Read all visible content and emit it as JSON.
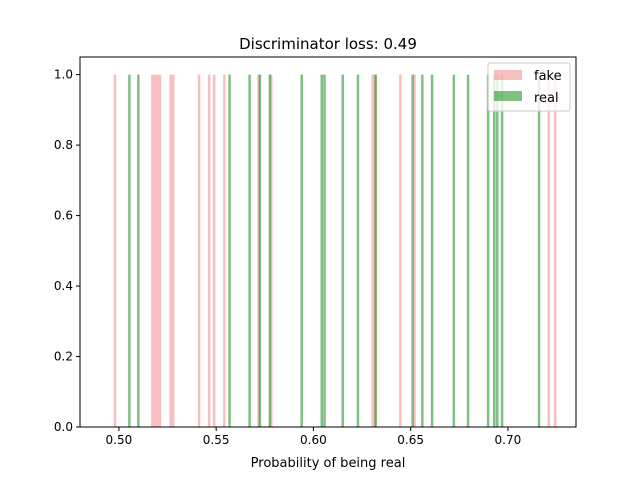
{
  "chart_data": {
    "type": "bar",
    "title": "Discriminator loss: 0.49",
    "xlabel": "Probability of being real",
    "ylabel": "",
    "xlim": [
      0.48,
      0.735
    ],
    "ylim": [
      0,
      1.05
    ],
    "xticks": [
      0.5,
      0.55,
      0.6,
      0.65,
      0.7
    ],
    "xtick_labels": [
      "0.50",
      "0.55",
      "0.60",
      "0.65",
      "0.70"
    ],
    "yticks": [
      0.0,
      0.2,
      0.4,
      0.6,
      0.8,
      1.0
    ],
    "ytick_labels": [
      "0.0",
      "0.2",
      "0.4",
      "0.6",
      "0.8",
      "1.0"
    ],
    "grid": false,
    "legend_position": "top-right",
    "series": [
      {
        "name": "fake",
        "color": "#f08080",
        "opacity": 0.5,
        "x": [
          0.498,
          0.5172,
          0.5185,
          0.5198,
          0.5211,
          0.5266,
          0.5279,
          0.5412,
          0.5464,
          0.549,
          0.5542,
          0.5718,
          0.5783,
          0.6305,
          0.6318,
          0.6447,
          0.652,
          0.721,
          0.7243
        ],
        "values": [
          1,
          1,
          1,
          1,
          1,
          1,
          1,
          1,
          1,
          1,
          1,
          1,
          1,
          1,
          1,
          1,
          1,
          1,
          1
        ]
      },
      {
        "name": "real",
        "color": "#008000",
        "opacity": 0.5,
        "x": [
          0.5054,
          0.51,
          0.5569,
          0.5672,
          0.5725,
          0.5776,
          0.594,
          0.6043,
          0.6057,
          0.6151,
          0.6229,
          0.632,
          0.651,
          0.656,
          0.661,
          0.6722,
          0.6795,
          0.6898,
          0.693,
          0.6945,
          0.697,
          0.716
        ],
        "values": [
          1,
          1,
          1,
          1,
          1,
          1,
          1,
          1,
          1,
          1,
          1,
          1,
          1,
          1,
          1,
          1,
          1,
          1,
          1,
          1,
          1,
          1
        ]
      }
    ]
  }
}
